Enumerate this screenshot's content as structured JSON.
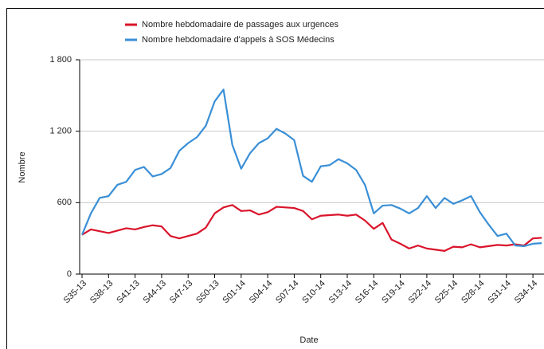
{
  "chart_data": {
    "type": "line",
    "x_label": "Date",
    "y_label": "Nombre",
    "categories": [
      "S35-13",
      null,
      null,
      "S38-13",
      null,
      null,
      "S41-13",
      null,
      null,
      "S44-13",
      null,
      null,
      "S47-13",
      null,
      null,
      "S50-13",
      null,
      null,
      "S01-14",
      null,
      null,
      "S04-14",
      null,
      null,
      "S07-14",
      null,
      null,
      "S10-14",
      null,
      null,
      "S13-14",
      null,
      null,
      "S16-14",
      null,
      null,
      "S19-14",
      null,
      null,
      "S22-14",
      null,
      null,
      "S25-14",
      null,
      null,
      "S28-14",
      null,
      null,
      "S31-14",
      null,
      null,
      "S34-14",
      null
    ],
    "series": [
      {
        "name": "Nombre hebdomadaire de passages aux urgences",
        "color": "#d9142b",
        "values": [
          330,
          375,
          360,
          345,
          365,
          385,
          375,
          395,
          410,
          400,
          320,
          300,
          320,
          340,
          390,
          510,
          560,
          580,
          530,
          535,
          500,
          520,
          565,
          560,
          555,
          530,
          460,
          490,
          495,
          500,
          490,
          500,
          450,
          380,
          430,
          290,
          255,
          215,
          240,
          215,
          205,
          195,
          230,
          225,
          250,
          225,
          235,
          245,
          240,
          250,
          240,
          300,
          305
        ]
      },
      {
        "name": "Nombre hebdomadaire d'appels à SOS Médecins",
        "color": "#3a8fd6",
        "values": [
          330,
          510,
          640,
          655,
          750,
          775,
          875,
          900,
          820,
          840,
          890,
          1035,
          1100,
          1150,
          1245,
          1450,
          1550,
          1085,
          885,
          1015,
          1100,
          1140,
          1220,
          1180,
          1125,
          825,
          775,
          905,
          915,
          965,
          930,
          875,
          750,
          510,
          575,
          580,
          550,
          510,
          555,
          655,
          555,
          640,
          590,
          620,
          655,
          520,
          415,
          320,
          340,
          240,
          235,
          255,
          260
        ]
      }
    ],
    "ylim": [
      0,
      1800
    ],
    "yticks": [
      0,
      600,
      {
        "value": 1200,
        "label": "1 200"
      },
      {
        "value": 1800,
        "label": "1 800"
      }
    ],
    "grid": true,
    "legend": "top"
  }
}
